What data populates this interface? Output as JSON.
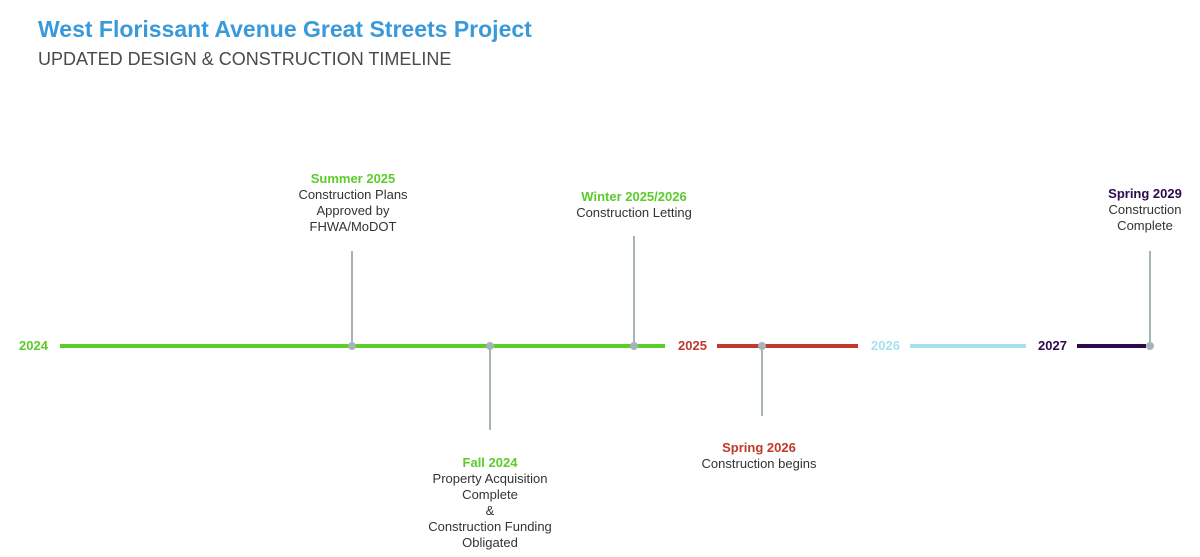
{
  "header": {
    "title": "West Florissant Avenue Great Streets Project",
    "subtitle": "UPDATED DESIGN & CONSTRUCTION TIMELINE"
  },
  "colors": {
    "title": "#3a9ad9",
    "green": "#5ccc2a",
    "red": "#c0392b",
    "light_blue": "#a6e1f2",
    "purple": "#2d0a4e",
    "stem_gray": "#a6b4b8"
  },
  "timeline": {
    "years": [
      {
        "label": "2024",
        "color": "#5ccc2a"
      },
      {
        "label": "2025",
        "color": "#c0392b"
      },
      {
        "label": "2026",
        "color": "#a6e1f2"
      },
      {
        "label": "2027",
        "color": "#2d0a4e"
      }
    ],
    "milestones": [
      {
        "date": "Summer 2025",
        "color": "#5ccc2a",
        "lines": [
          "Construction Plans",
          "Approved by",
          "FHWA/MoDOT"
        ]
      },
      {
        "date": "Fall 2024",
        "color": "#5ccc2a",
        "lines": [
          "Property Acquisition",
          "Complete",
          "&",
          "Construction Funding",
          "Obligated"
        ]
      },
      {
        "date": "Winter 2025/2026",
        "color": "#5ccc2a",
        "lines": [
          "Construction Letting"
        ]
      },
      {
        "date": "Spring 2026",
        "color": "#c0392b",
        "lines": [
          "Construction begins"
        ]
      },
      {
        "date": "Spring 2029",
        "color": "#2d0a4e",
        "lines": [
          "Construction",
          "Complete"
        ]
      }
    ]
  }
}
